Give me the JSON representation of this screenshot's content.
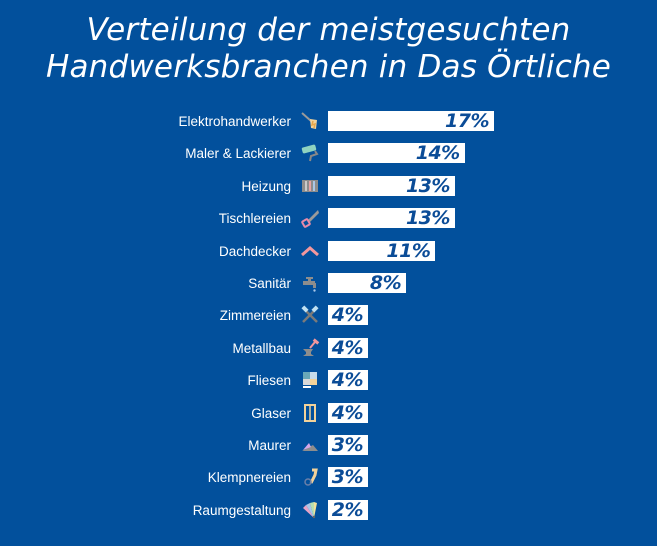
{
  "colors": {
    "background": "#02509c",
    "bar": "#ffffff",
    "value_text": "#0b4c97",
    "label_text": "#ffffff"
  },
  "chart_data": {
    "type": "bar",
    "orientation": "horizontal",
    "title": "Verteilung der meistgesuchten Handwerksbranchen in Das Örtliche",
    "title_lines": [
      "Verteilung der meistgesuchten",
      "Handwerksbranchen in Das Örtliche"
    ],
    "xlabel": "",
    "ylabel": "",
    "unit": "%",
    "xlim": [
      0,
      17
    ],
    "grid": false,
    "legend": "none",
    "categories": [
      "Elektrohandwerker",
      "Maler & Lackierer",
      "Heizung",
      "Tischlereien",
      "Dachdecker",
      "Sanitär",
      "Zimmereien",
      "Metallbau",
      "Fliesen",
      "Glaser",
      "Maurer",
      "Klempnereien",
      "Raumgestaltung"
    ],
    "values": [
      17,
      14,
      13,
      13,
      11,
      8,
      4,
      4,
      4,
      4,
      3,
      3,
      2
    ],
    "data_labels": [
      "17%",
      "14%",
      "13%",
      "13%",
      "11%",
      "8%",
      "4%",
      "4%",
      "4%",
      "4%",
      "3%",
      "3%",
      "2%"
    ],
    "icons": [
      "electric-screwdriver-icon",
      "paint-roller-icon",
      "radiator-icon",
      "saw-icon",
      "roof-icon",
      "faucet-icon",
      "crossed-hammers-icon",
      "anvil-hammer-icon",
      "tiles-icon",
      "window-icon",
      "trowel-icon",
      "pipe-wrench-icon",
      "color-swatch-icon"
    ]
  }
}
